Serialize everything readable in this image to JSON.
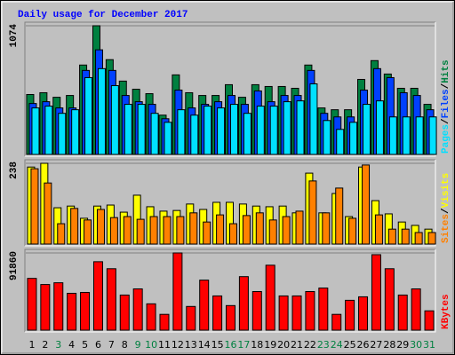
{
  "chart_data": {
    "type": "bar",
    "title": "Daily usage for December 2017",
    "legend_separator": "/",
    "categories": [
      "1",
      "2",
      "3",
      "4",
      "5",
      "6",
      "7",
      "8",
      "9",
      "10",
      "11",
      "12",
      "13",
      "14",
      "15",
      "16",
      "17",
      "18",
      "19",
      "20",
      "21",
      "22",
      "23",
      "24",
      "25",
      "26",
      "27",
      "28",
      "29",
      "30",
      "31"
    ],
    "category_colors": [
      "#000000",
      "#000000",
      "#008040",
      "#000000",
      "#000000",
      "#000000",
      "#000000",
      "#000000",
      "#008040",
      "#008040",
      "#000000",
      "#000000",
      "#000000",
      "#000000",
      "#000000",
      "#008040",
      "#008040",
      "#000000",
      "#000000",
      "#000000",
      "#000000",
      "#000000",
      "#008040",
      "#008040",
      "#000000",
      "#000000",
      "#000000",
      "#000000",
      "#000000",
      "#008040",
      "#008040"
    ],
    "panels": [
      {
        "ylim": [
          0,
          1074
        ],
        "yticks": [
          1074
        ],
        "series": [
          {
            "name": "Hits",
            "color": "#008040",
            "values": [
              500,
              515,
              477,
              492,
              746,
              1074,
              791,
              612,
              544,
              507,
              328,
              664,
              515,
              492,
              492,
              582,
              477,
              582,
              567,
              567,
              552,
              746,
              388,
              373,
              373,
              626,
              783,
              671,
              552,
              552,
              418
            ]
          },
          {
            "name": "Files",
            "color": "#0040ff",
            "values": [
              425,
              440,
              388,
              388,
              701,
              873,
              701,
              492,
              440,
              418,
              298,
              537,
              388,
              418,
              440,
              492,
              418,
              530,
              440,
              492,
              492,
              701,
              343,
              313,
              313,
              537,
              716,
              641,
              515,
              492,
              373
            ]
          },
          {
            "name": "Pages",
            "color": "#00e0ff",
            "values": [
              388,
              403,
              343,
              373,
              641,
              716,
              574,
              418,
              418,
              343,
              268,
              373,
              328,
              403,
              388,
              418,
              343,
              403,
              403,
              440,
              447,
              589,
              283,
              209,
              268,
              418,
              447,
              313,
              313,
              313,
              313
            ]
          }
        ]
      },
      {
        "ylim": [
          0,
          238
        ],
        "yticks": [
          238
        ],
        "series": [
          {
            "name": "Visits",
            "color": "#ffff00",
            "values": [
              227,
              238,
              107,
              112,
              76,
              112,
              115,
              94,
              144,
              110,
              97,
              99,
              118,
              102,
              123,
              123,
              118,
              112,
              110,
              112,
              92,
              209,
              92,
              149,
              81,
              227,
              128,
              89,
              65,
              55,
              44
            ]
          },
          {
            "name": "Sites",
            "color": "#ff8000",
            "values": [
              222,
              180,
              60,
              105,
              71,
              102,
              78,
              81,
              73,
              81,
              81,
              81,
              92,
              65,
              86,
              60,
              84,
              92,
              71,
              81,
              97,
              186,
              92,
              165,
              76,
              233,
              86,
              44,
              44,
              34,
              34
            ]
          }
        ]
      },
      {
        "ylim": [
          0,
          91860
        ],
        "yticks": [
          91860
        ],
        "series": [
          {
            "name": "KBytes",
            "color": "#ff0000",
            "values": [
              61590,
              54290,
              56380,
              43850,
              44890,
              81430,
              73080,
              41760,
              49070,
              31320,
              18790,
              91860,
              28190,
              59510,
              40720,
              29230,
              63680,
              45940,
              77260,
              40720,
              40720,
              45940,
              50110,
              18790,
              35500,
              39670,
              89780,
              73080,
              41760,
              49070,
              22970
            ]
          }
        ]
      }
    ]
  }
}
